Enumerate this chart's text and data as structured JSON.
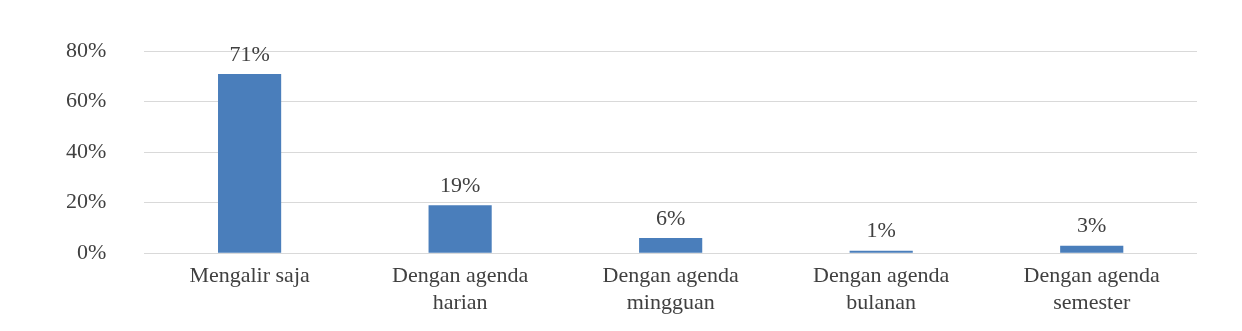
{
  "chart_data": {
    "type": "bar",
    "categories": [
      "Mengalir saja",
      "Dengan agenda harian",
      "Dengan agenda mingguan",
      "Dengan agenda bulanan",
      "Dengan agenda semester"
    ],
    "values": [
      71,
      19,
      6,
      1,
      3
    ],
    "value_labels": [
      "71%",
      "19%",
      "6%",
      "1%",
      "3%"
    ],
    "color": "#4a7ebb",
    "ylim": [
      0,
      80
    ],
    "yticks": [
      {
        "value": 0,
        "label": "0%"
      },
      {
        "value": 20,
        "label": "20%"
      },
      {
        "value": 40,
        "label": "40%"
      },
      {
        "value": 60,
        "label": "60%"
      },
      {
        "value": 80,
        "label": "80%"
      }
    ],
    "grid": "y",
    "legend": false
  }
}
